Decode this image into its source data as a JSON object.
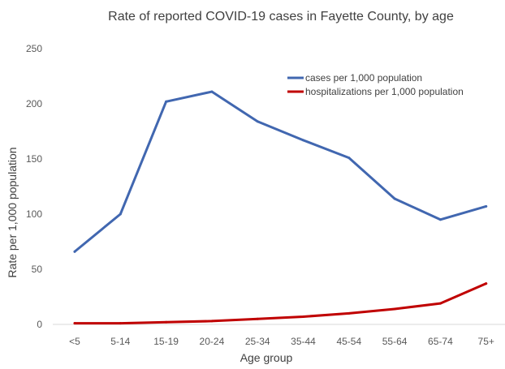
{
  "chart_data": {
    "type": "line",
    "title": "Rate of reported COVID-19 cases in Fayette County, by age",
    "xlabel": "Age group",
    "ylabel": "Rate per 1,000 population",
    "categories": [
      "<5",
      "5-14",
      "15-19",
      "20-24",
      "25-34",
      "35-44",
      "45-54",
      "55-64",
      "65-74",
      "75+"
    ],
    "ylim": [
      0,
      250
    ],
    "yticks": [
      0,
      50,
      100,
      150,
      200,
      250
    ],
    "grid": false,
    "legend_position": "top-right",
    "series": [
      {
        "name": "cases per 1,000 population",
        "color": "#4167b0",
        "values": [
          66,
          100,
          202,
          211,
          184,
          167,
          151,
          114,
          95,
          107
        ]
      },
      {
        "name": "hospitalizations per 1,000 population",
        "color": "#c00000",
        "values": [
          1,
          1,
          2,
          3,
          5,
          7,
          10,
          14,
          19,
          37
        ]
      }
    ]
  }
}
